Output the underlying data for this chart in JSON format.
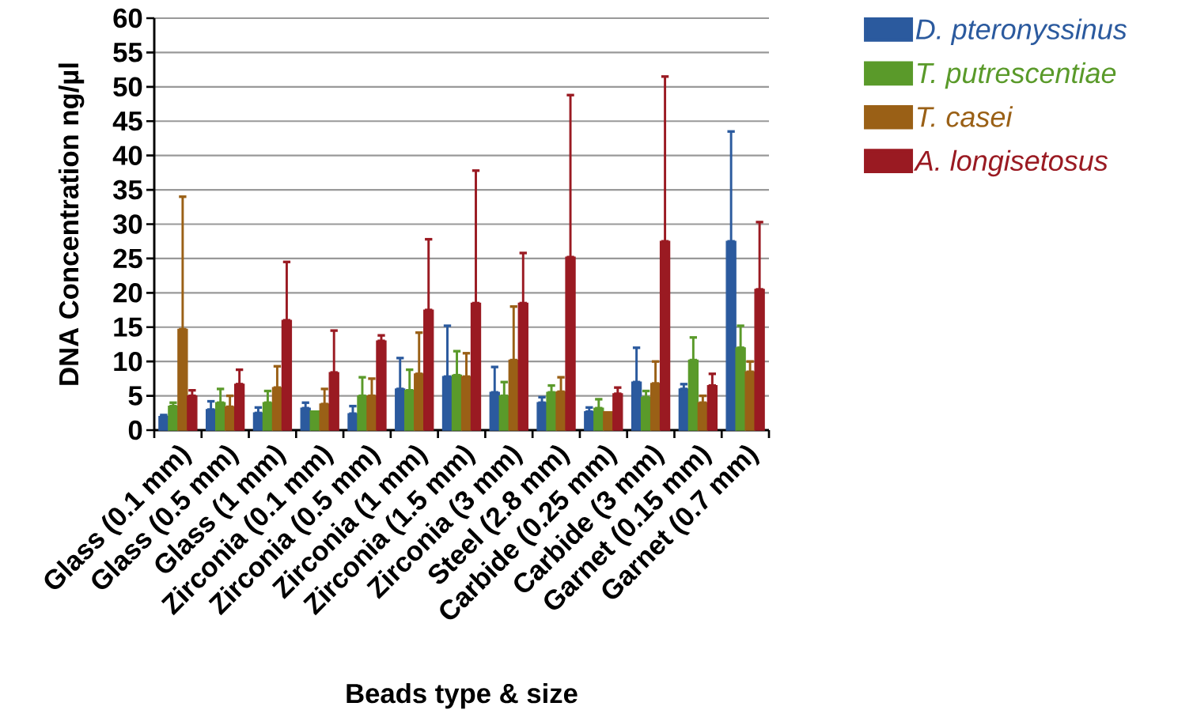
{
  "chart_data": {
    "type": "bar",
    "xlabel": "Beads type & size",
    "ylabel": "DNA Concentration ng/µl",
    "categories": [
      "Glass (0.1 mm)",
      "Glass (0.5 mm)",
      "Glass (1 mm)",
      "Zirconia (0.1 mm)",
      "Zirconia (0.5 mm)",
      "Zirconia (1 mm)",
      "Zirconia (1.5 mm)",
      "Zirconia (3 mm)",
      "Steel (2.8 mm)",
      "Carbide (0.25 mm)",
      "Carbide (3 mm)",
      "Garnet (0.15 mm)",
      "Garnet (0.7 mm)"
    ],
    "series": [
      {
        "name": "D. pteronyssinus",
        "color": "#2b5a9e",
        "values": [
          2.0,
          3.0,
          2.5,
          3.2,
          2.4,
          6.0,
          7.8,
          5.5,
          4.0,
          2.7,
          7.0,
          6.0,
          27.5
        ],
        "errors": [
          [
            2.0,
            2.2
          ],
          [
            3.0,
            4.2
          ],
          [
            2.5,
            3.3
          ],
          [
            3.2,
            4.0
          ],
          [
            2.4,
            3.5
          ],
          [
            6.0,
            10.5
          ],
          [
            7.8,
            15.2
          ],
          [
            5.5,
            9.2
          ],
          [
            4.0,
            4.8
          ],
          [
            2.7,
            3.3
          ],
          [
            7.0,
            12.0
          ],
          [
            6.0,
            6.7
          ],
          [
            27.5,
            43.5
          ]
        ]
      },
      {
        "name": "T. putrescentiae",
        "color": "#5a9a2a",
        "values": [
          3.5,
          4.0,
          4.0,
          2.8,
          5.0,
          5.8,
          8.0,
          5.0,
          5.5,
          3.2,
          4.8,
          10.2,
          12.0
        ],
        "errors": [
          [
            3.5,
            4.0
          ],
          [
            4.0,
            6.0
          ],
          [
            4.0,
            5.7
          ],
          null,
          [
            5.0,
            7.7
          ],
          [
            5.8,
            8.8
          ],
          [
            8.0,
            11.5
          ],
          [
            5.0,
            7.0
          ],
          [
            5.5,
            6.5
          ],
          [
            3.2,
            4.5
          ],
          [
            4.8,
            5.7
          ],
          [
            10.2,
            13.5
          ],
          [
            12.0,
            15.2
          ]
        ]
      },
      {
        "name": "T. casei",
        "color": "#9a6016",
        "values": [
          14.7,
          3.4,
          6.2,
          3.8,
          5.0,
          8.2,
          7.8,
          10.2,
          5.6,
          2.7,
          6.8,
          4.0,
          8.5
        ],
        "errors": [
          [
            14.7,
            34.0
          ],
          [
            3.4,
            5.0
          ],
          [
            6.2,
            9.3
          ],
          [
            3.8,
            6.0
          ],
          [
            5.0,
            7.5
          ],
          [
            8.2,
            14.2
          ],
          [
            7.8,
            11.2
          ],
          [
            10.2,
            18.0
          ],
          [
            5.6,
            7.7
          ],
          null,
          [
            6.8,
            10.0
          ],
          [
            4.0,
            5.0
          ],
          [
            8.5,
            10.0
          ]
        ]
      },
      {
        "name": "A. longisetosus",
        "color": "#9a1a22",
        "values": [
          5.0,
          6.7,
          16.0,
          8.4,
          13.0,
          17.5,
          18.5,
          18.5,
          25.2,
          5.3,
          27.5,
          6.5,
          20.5
        ],
        "errors": [
          [
            5.0,
            5.8
          ],
          [
            6.7,
            8.8
          ],
          [
            16.0,
            24.5
          ],
          [
            8.4,
            14.5
          ],
          [
            13.0,
            13.8
          ],
          [
            17.5,
            27.8
          ],
          [
            18.5,
            37.8
          ],
          [
            18.5,
            25.8
          ],
          [
            25.2,
            48.8
          ],
          [
            5.3,
            6.2
          ],
          [
            27.5,
            51.5
          ],
          [
            6.5,
            8.2
          ],
          [
            20.5,
            30.3
          ]
        ]
      }
    ],
    "ylim": [
      0,
      60
    ],
    "yticks": [
      0,
      5,
      10,
      15,
      20,
      25,
      30,
      35,
      40,
      45,
      50,
      55,
      60
    ],
    "grid": "y",
    "legend": "top right"
  }
}
